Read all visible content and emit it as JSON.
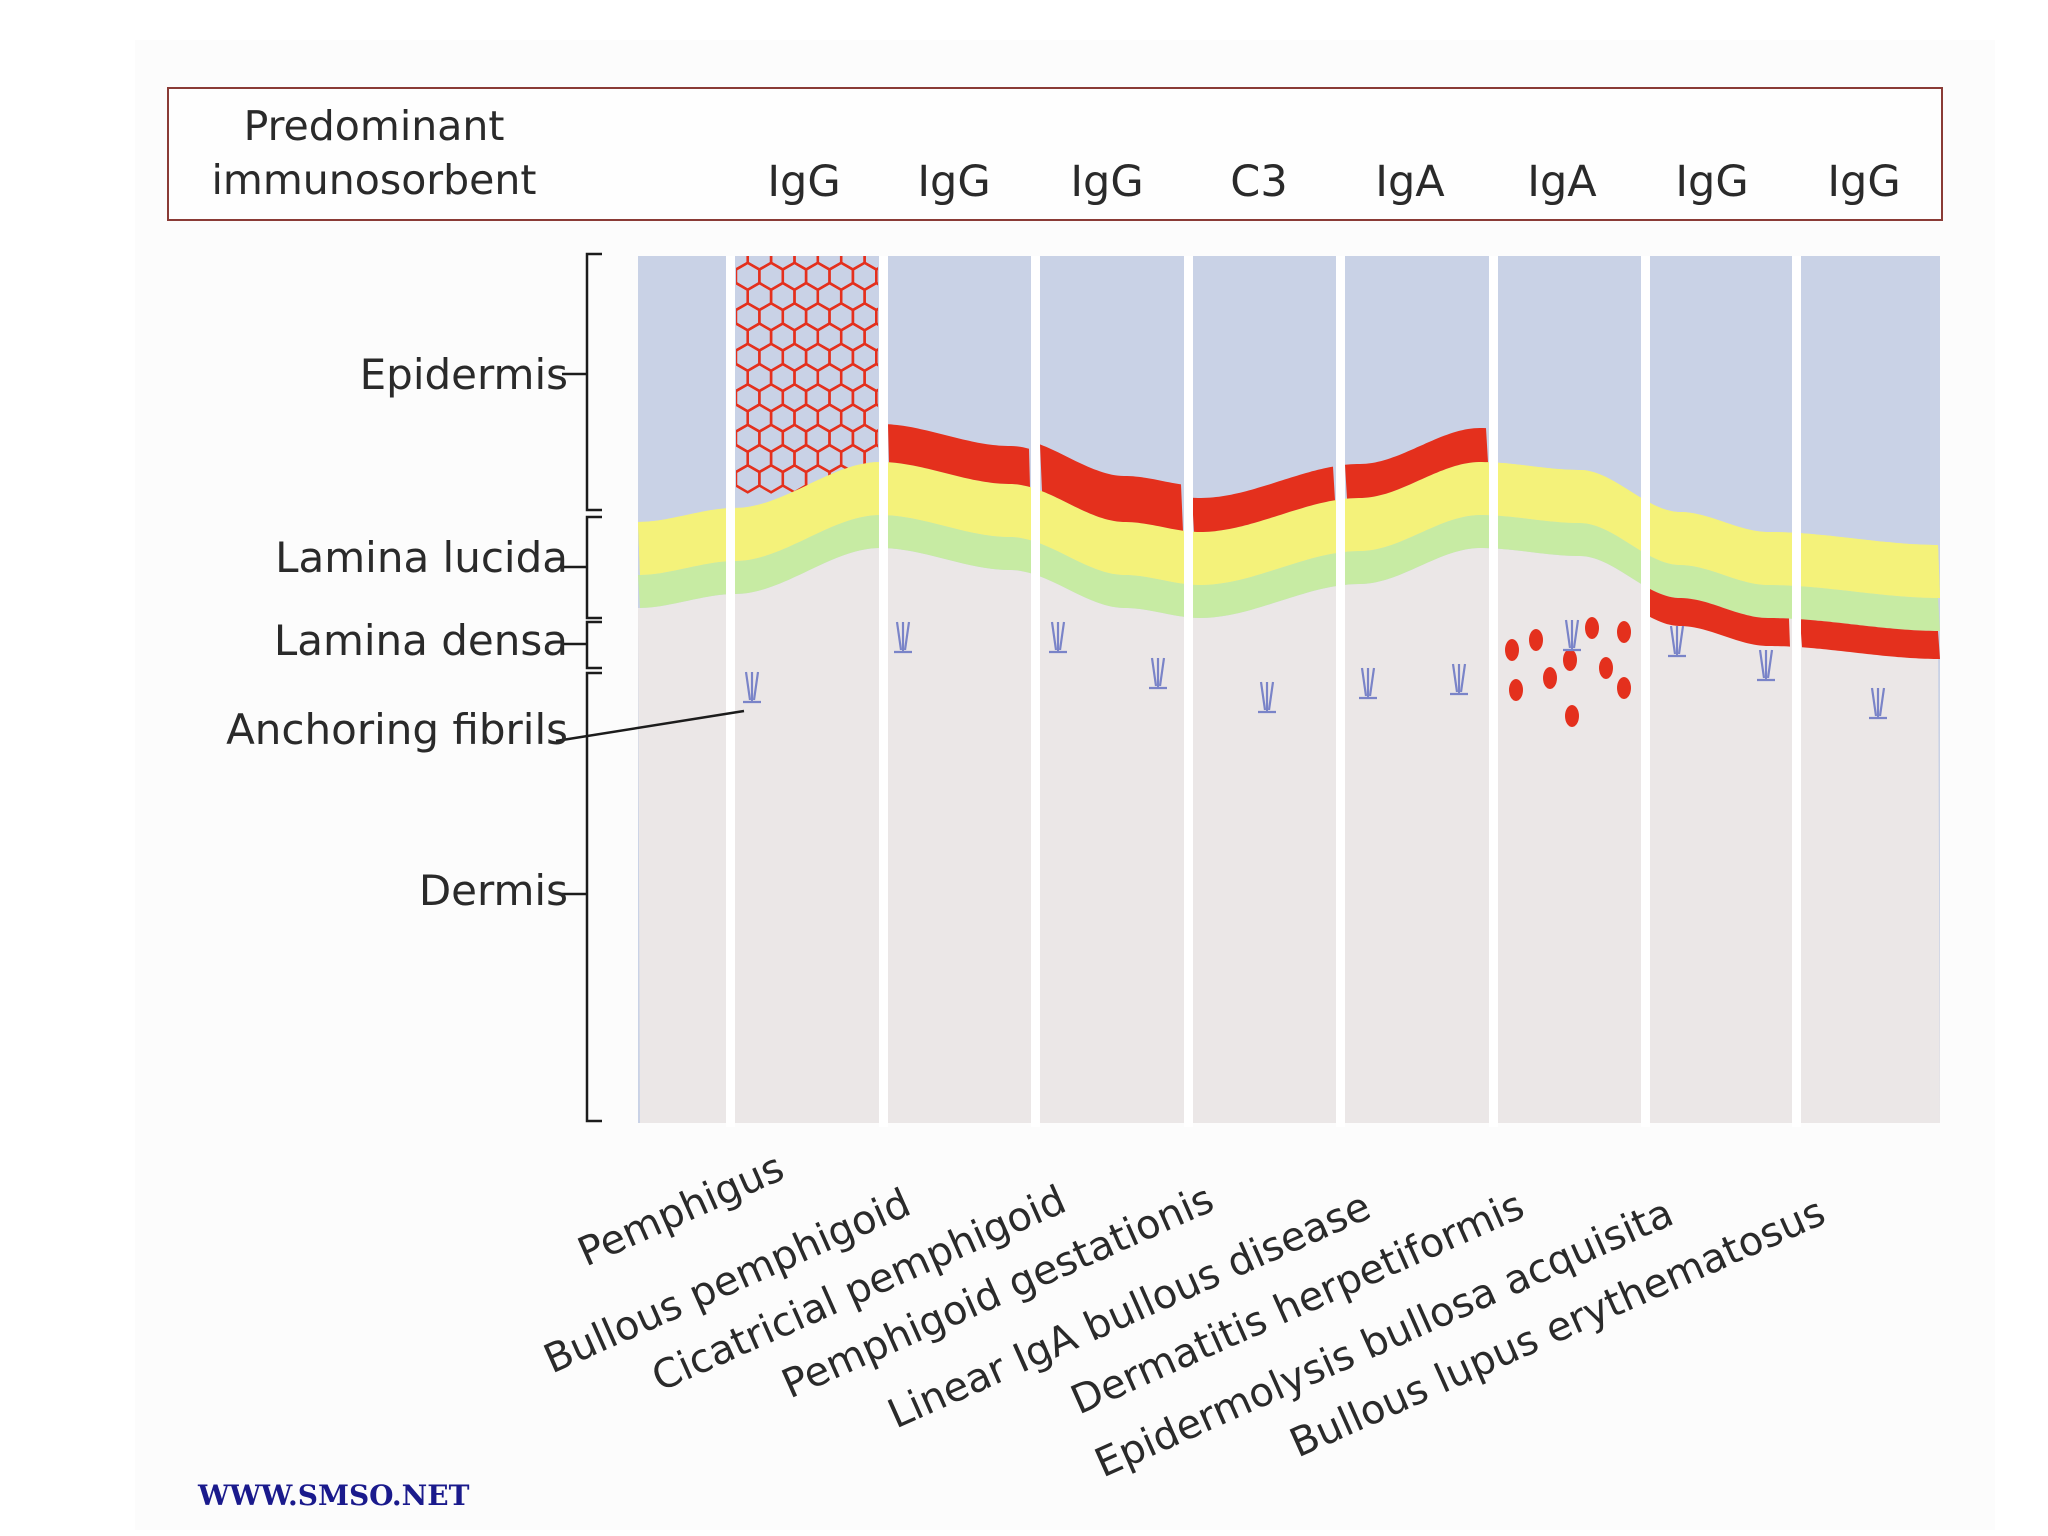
{
  "header": {
    "title_line1": "Predominant",
    "title_line2": "immunosorbent",
    "immunoreactants": [
      "IgG",
      "IgG",
      "IgG",
      "C3",
      "IgA",
      "IgA",
      "IgG",
      "IgG"
    ]
  },
  "layers": {
    "epidermis": "Epidermis",
    "lamina_lucida": "Lamina lucida",
    "lamina_densa": "Lamina densa",
    "anchoring_fibrils": "Anchoring fibrils",
    "dermis": "Dermis"
  },
  "diseases": [
    "Pemphigus",
    "Bullous pemphigoid",
    "Cicatricial pemphigoid",
    "Pemphigoid gestationis",
    "Linear IgA bullous disease",
    "Dermatitis herpetiformis",
    "Epidermolysis bullosa acquisita",
    "Bullous lupus erythematosus"
  ],
  "colors": {
    "epidermis": "#c9d2e6",
    "lamina_lucida": "#f4f27a",
    "lamina_densa": "#c7eba3",
    "dermis": "#ebe7e7",
    "immune_deposit": "#e4301d",
    "fibril": "#7a84c8"
  },
  "footer": "WWW.SMSO.NET"
}
